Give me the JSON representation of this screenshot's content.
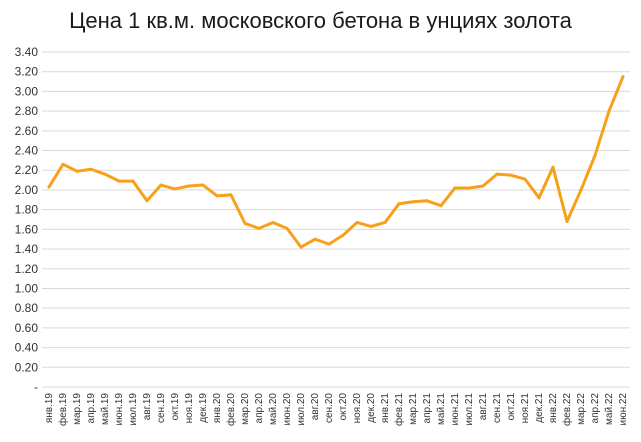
{
  "chart_data": {
    "type": "line",
    "title": "Цена 1 кв.м. московского бетона в унциях золота",
    "xlabel": "",
    "ylabel": "",
    "ylim": [
      0,
      3.4
    ],
    "grid": true,
    "line_color": "#F7A11A",
    "grid_color": "#D9D9D9",
    "ytick_labels": [
      "-",
      "0.20",
      "0.40",
      "0.60",
      "0.80",
      "1.00",
      "1.20",
      "1.40",
      "1.60",
      "1.80",
      "2.00",
      "2.20",
      "2.40",
      "2.60",
      "2.80",
      "3.00",
      "3.20",
      "3.40"
    ],
    "ytick_values": [
      0,
      0.2,
      0.4,
      0.6,
      0.8,
      1.0,
      1.2,
      1.4,
      1.6,
      1.8,
      2.0,
      2.2,
      2.4,
      2.6,
      2.8,
      3.0,
      3.2,
      3.4
    ],
    "categories": [
      "янв.19",
      "фев.19",
      "мар.19",
      "апр.19",
      "май.19",
      "июн.19",
      "июл.19",
      "авг.19",
      "сен.19",
      "окт.19",
      "ноя.19",
      "дек.19",
      "янв.20",
      "фев.20",
      "мар.20",
      "апр.20",
      "май.20",
      "июн.20",
      "июл.20",
      "авг.20",
      "сен.20",
      "окт.20",
      "ноя.20",
      "дек.20",
      "янв.21",
      "фев.21",
      "мар.21",
      "апр.21",
      "май.21",
      "июн.21",
      "июл.21",
      "авг.21",
      "сен.21",
      "окт.21",
      "ноя.21",
      "дек.21",
      "янв.22",
      "фев.22",
      "мар.22",
      "апр.22",
      "май.22",
      "июн.22"
    ],
    "series": [
      {
        "values": [
          2.03,
          2.26,
          2.19,
          2.21,
          2.16,
          2.09,
          2.09,
          1.89,
          2.05,
          2.01,
          2.04,
          2.05,
          1.94,
          1.95,
          1.66,
          1.61,
          1.67,
          1.61,
          1.42,
          1.5,
          1.45,
          1.54,
          1.67,
          1.63,
          1.67,
          1.86,
          1.88,
          1.89,
          1.84,
          2.02,
          2.02,
          2.04,
          2.16,
          2.15,
          2.11,
          1.92,
          2.23,
          1.68,
          2.0,
          2.35,
          2.8,
          3.15
        ]
      }
    ]
  }
}
